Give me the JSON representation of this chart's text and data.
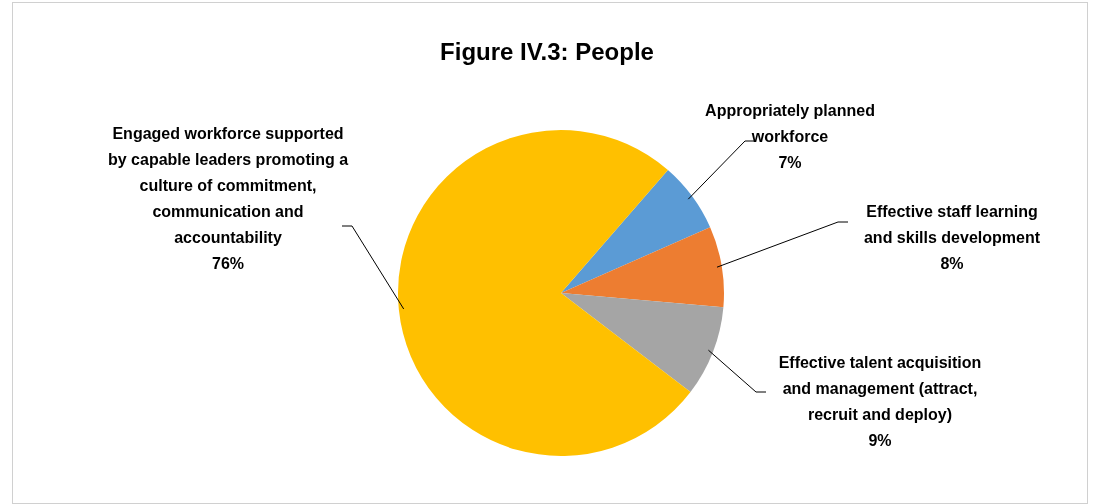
{
  "chart_data": {
    "type": "pie",
    "title": "Figure IV.3: People",
    "categories": [
      "Appropriately planned workforce",
      "Effective staff learning and skills development",
      "Effective talent acquisition and management (attract, recruit and deploy)",
      "Engaged workforce supported by capable leaders promoting a culture of commitment, communication and accountability"
    ],
    "values": [
      7,
      8,
      9,
      76
    ],
    "value_labels": [
      "7%",
      "8%",
      "9%",
      "76%"
    ],
    "colors": [
      "#5b9bd5",
      "#ed7d31",
      "#a5a5a5",
      "#ffc000"
    ],
    "legend": false
  }
}
